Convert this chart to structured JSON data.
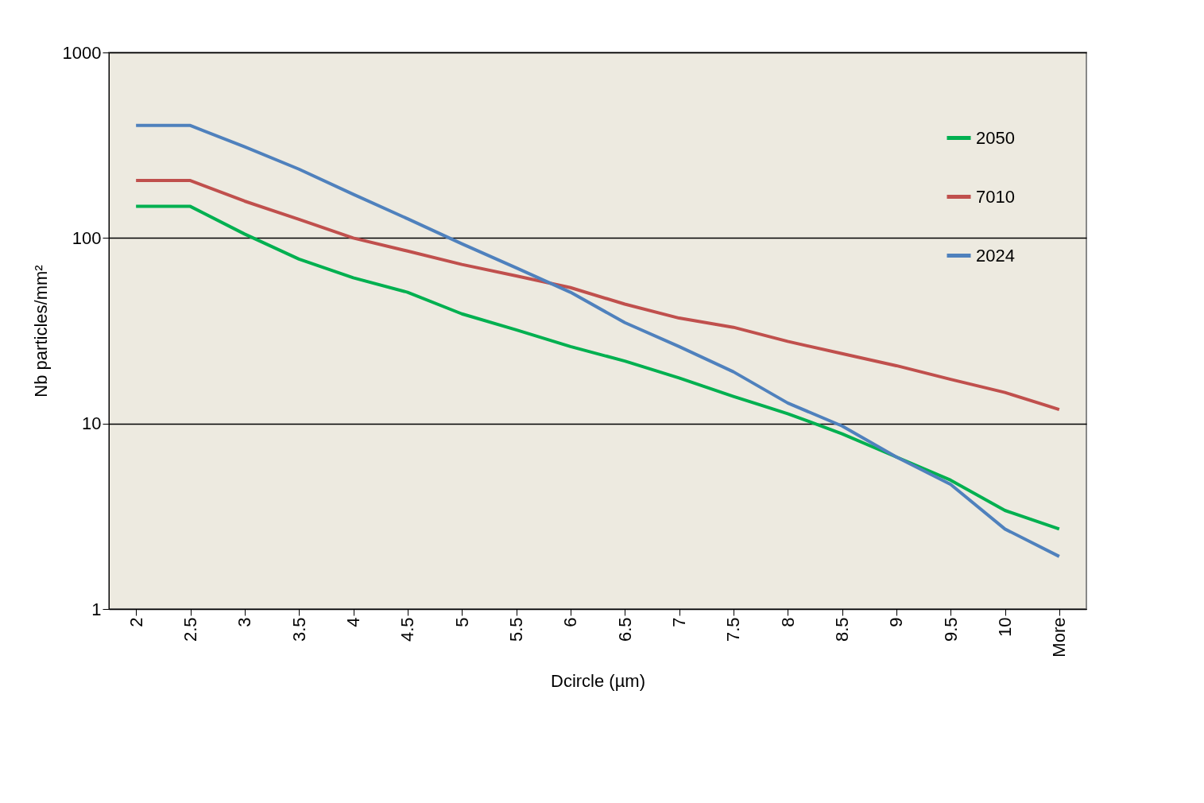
{
  "chart_data": {
    "type": "line",
    "xlabel": "Dcircle (µm)",
    "ylabel": "Nb particles/mm²",
    "categories": [
      "2",
      "2.5",
      "3",
      "3.5",
      "4",
      "4.5",
      "5",
      "5.5",
      "6",
      "6.5",
      "7",
      "7.5",
      "8",
      "8.5",
      "9",
      "9.5",
      "10",
      "More"
    ],
    "series": [
      {
        "name": "2050",
        "color": "#00b050",
        "values": [
          148,
          148,
          105,
          77,
          61,
          51,
          39,
          32,
          26,
          21.7,
          17.6,
          14,
          11.3,
          8.8,
          6.6,
          4.95,
          3.4,
          2.7
        ]
      },
      {
        "name": "7010",
        "color": "#c0504d",
        "values": [
          204,
          204,
          158,
          126,
          100,
          85,
          72,
          62.5,
          54,
          44,
          37,
          33,
          27.7,
          23.8,
          20.5,
          17.3,
          14.7,
          11.9
        ]
      },
      {
        "name": "2024",
        "color": "#4f81bd",
        "values": [
          404,
          404,
          310,
          235,
          172,
          127,
          93,
          69,
          51,
          35,
          26,
          19,
          12.9,
          9.7,
          6.6,
          4.7,
          2.7,
          1.92
        ]
      }
    ],
    "log": "y",
    "ylim": [
      1,
      1000
    ],
    "yticks": [
      1,
      10,
      100,
      1000
    ],
    "grid": "y",
    "legend": "top right",
    "marker": "none",
    "line_style": "solid"
  }
}
